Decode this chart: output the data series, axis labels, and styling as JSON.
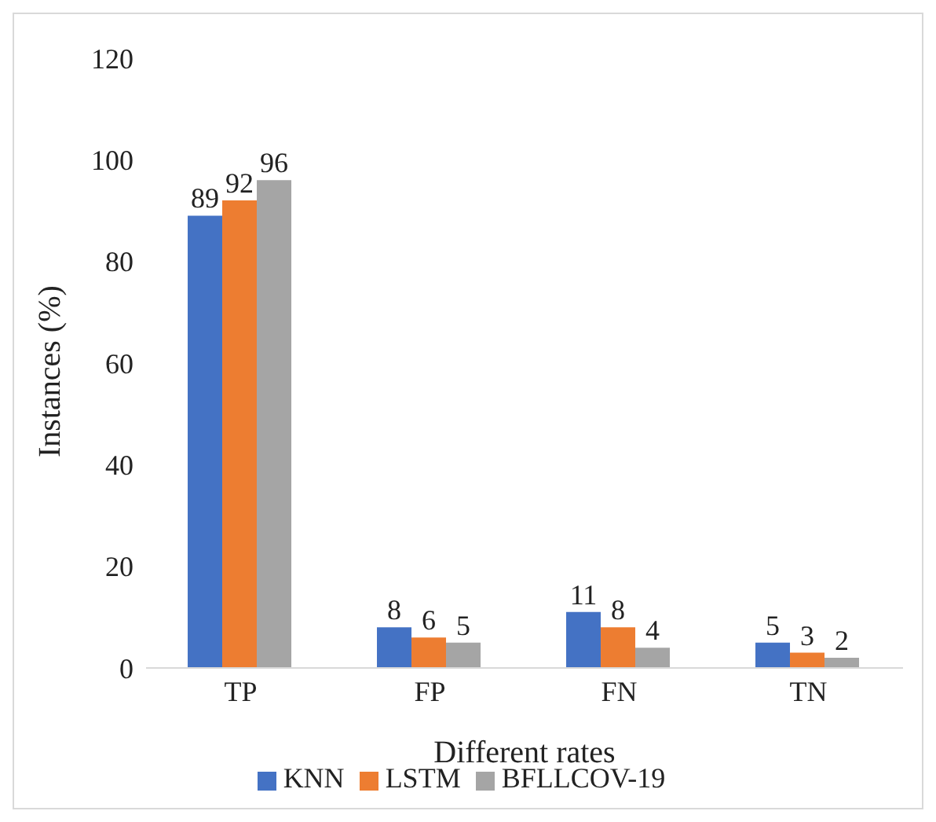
{
  "chart_data": {
    "type": "bar",
    "xlabel": "Different rates",
    "ylabel": "Instances (%)",
    "categories": [
      "TP",
      "FP",
      "FN",
      "TN"
    ],
    "series": [
      {
        "name": "KNN",
        "color": "#4472c4",
        "values": [
          89,
          8,
          11,
          5
        ]
      },
      {
        "name": "LSTM",
        "color": "#ed7d31",
        "values": [
          92,
          6,
          8,
          3
        ]
      },
      {
        "name": "BFLLCOV-19",
        "color": "#a5a5a5",
        "values": [
          96,
          5,
          4,
          2
        ]
      }
    ],
    "ylim": [
      0,
      120
    ],
    "yticks": [
      0,
      20,
      40,
      60,
      80,
      100,
      120
    ],
    "grid": false,
    "legend": "bottom",
    "data_labels": true
  }
}
